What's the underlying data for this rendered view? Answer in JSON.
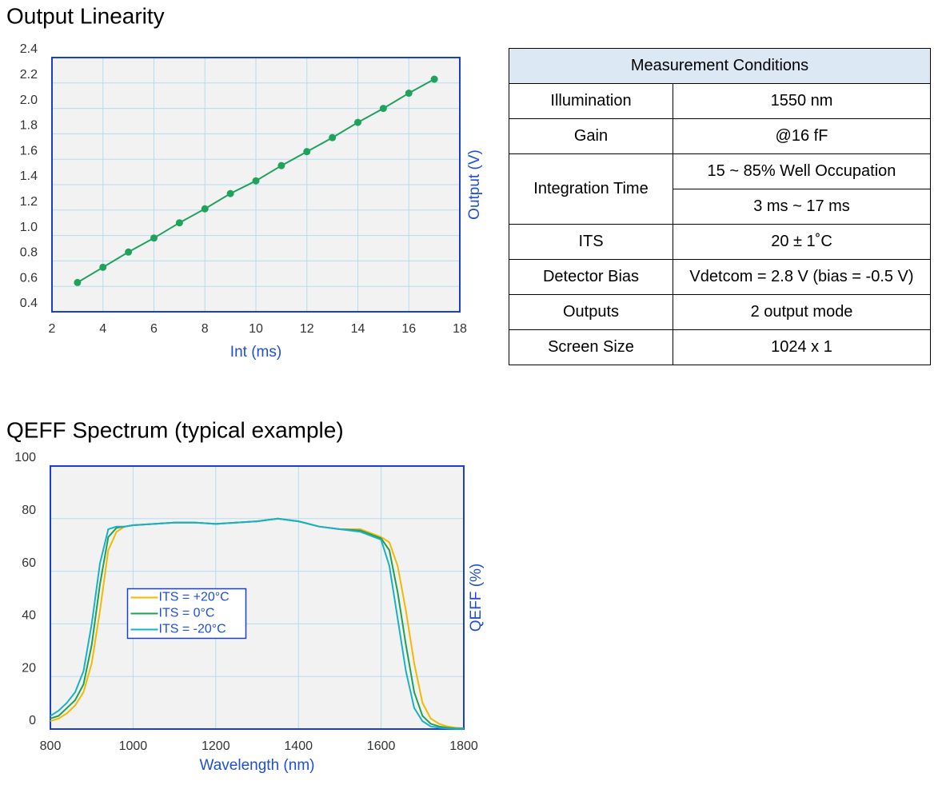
{
  "chart_data": [
    {
      "type": "line",
      "title": "Output Linearity",
      "x_label": "Int (ms)",
      "y_label": "Output (V)",
      "x": [
        3,
        4,
        5,
        6,
        7,
        8,
        9,
        10,
        11,
        12,
        13,
        14,
        15,
        16,
        17
      ],
      "values": [
        0.63,
        0.75,
        0.87,
        0.98,
        1.1,
        1.21,
        1.33,
        1.43,
        1.55,
        1.66,
        1.77,
        1.89,
        2.0,
        2.12,
        2.23
      ],
      "color": "#1fa35c",
      "markers": true,
      "xlim": [
        2,
        18
      ],
      "xticks": [
        2,
        4,
        6,
        8,
        10,
        12,
        14,
        16,
        18
      ],
      "ylim": [
        0.4,
        2.4
      ],
      "yticks": [
        0.4,
        0.6,
        0.8,
        {
          "value": 1.0,
          "label": "1.0"
        },
        1.2,
        1.4,
        1.6,
        1.8,
        {
          "value": 2.0,
          "label": "2.0"
        },
        2.2,
        2.4
      ],
      "grid": true
    },
    {
      "type": "line",
      "title": "QEFF Spectrum (typical example)",
      "x_label": "Wavelength (nm)",
      "y_label": "QEFF (%)",
      "x": [
        800,
        820,
        840,
        860,
        880,
        900,
        920,
        940,
        960,
        980,
        1000,
        1050,
        1100,
        1150,
        1200,
        1250,
        1300,
        1350,
        1400,
        1450,
        1500,
        1550,
        1600,
        1620,
        1640,
        1660,
        1680,
        1700,
        1720,
        1740,
        1760,
        1780,
        1800
      ],
      "series": [
        {
          "name": "ITS = +20°C",
          "color": "#f5b800",
          "values": [
            3,
            4,
            6,
            9,
            14,
            25,
            45,
            68,
            75,
            77,
            77.5,
            78,
            78.5,
            78.5,
            78,
            78.5,
            79,
            80,
            79,
            77,
            76,
            76,
            73,
            71,
            62,
            45,
            25,
            10,
            4,
            2,
            1,
            0.5,
            0.3
          ]
        },
        {
          "name": "ITS = 0°C",
          "color": "#22a052",
          "values": [
            4,
            5,
            8,
            11,
            17,
            32,
            55,
            73,
            76.5,
            77,
            77.5,
            78,
            78.5,
            78.5,
            78,
            78.5,
            79,
            80,
            79,
            77,
            76,
            75.5,
            72.5,
            68,
            52,
            32,
            14,
            5,
            2,
            1,
            0.5,
            0.2,
            0.2
          ]
        },
        {
          "name": "ITS = -20°C",
          "color": "#1ab0c8",
          "values": [
            5,
            7,
            10,
            14,
            22,
            40,
            63,
            76,
            77,
            77,
            77.5,
            78,
            78.5,
            78.5,
            78,
            78.5,
            79,
            80,
            79,
            77,
            76,
            75,
            72,
            62,
            42,
            22,
            8,
            3,
            1,
            0.5,
            0.2,
            0.1,
            0.1
          ]
        }
      ],
      "xlim": [
        800,
        1800
      ],
      "xticks": [
        800,
        1000,
        1200,
        1400,
        1600,
        1800
      ],
      "ylim": [
        0,
        100
      ],
      "yticks": [
        0,
        20,
        40,
        60,
        80,
        100
      ],
      "grid": true,
      "legend": "center"
    }
  ],
  "table": {
    "header": "Measurement Conditions",
    "rows": [
      {
        "label": "Illumination",
        "values": [
          "1550 nm"
        ]
      },
      {
        "label": "Gain",
        "values": [
          "@16 fF"
        ]
      },
      {
        "label": "Integration Time",
        "values": [
          "15 ~ 85% Well Occupation",
          "3 ms ~ 17 ms"
        ]
      },
      {
        "label": "ITS",
        "values": [
          "20 ± 1˚C"
        ]
      },
      {
        "label": "Detector Bias",
        "values": [
          "Vdetcom = 2.8 V (bias = -0.5 V)"
        ]
      },
      {
        "label": "Outputs",
        "values": [
          "2 output mode"
        ]
      },
      {
        "label": "Screen Size",
        "values": [
          "1024 x 1"
        ]
      }
    ]
  }
}
